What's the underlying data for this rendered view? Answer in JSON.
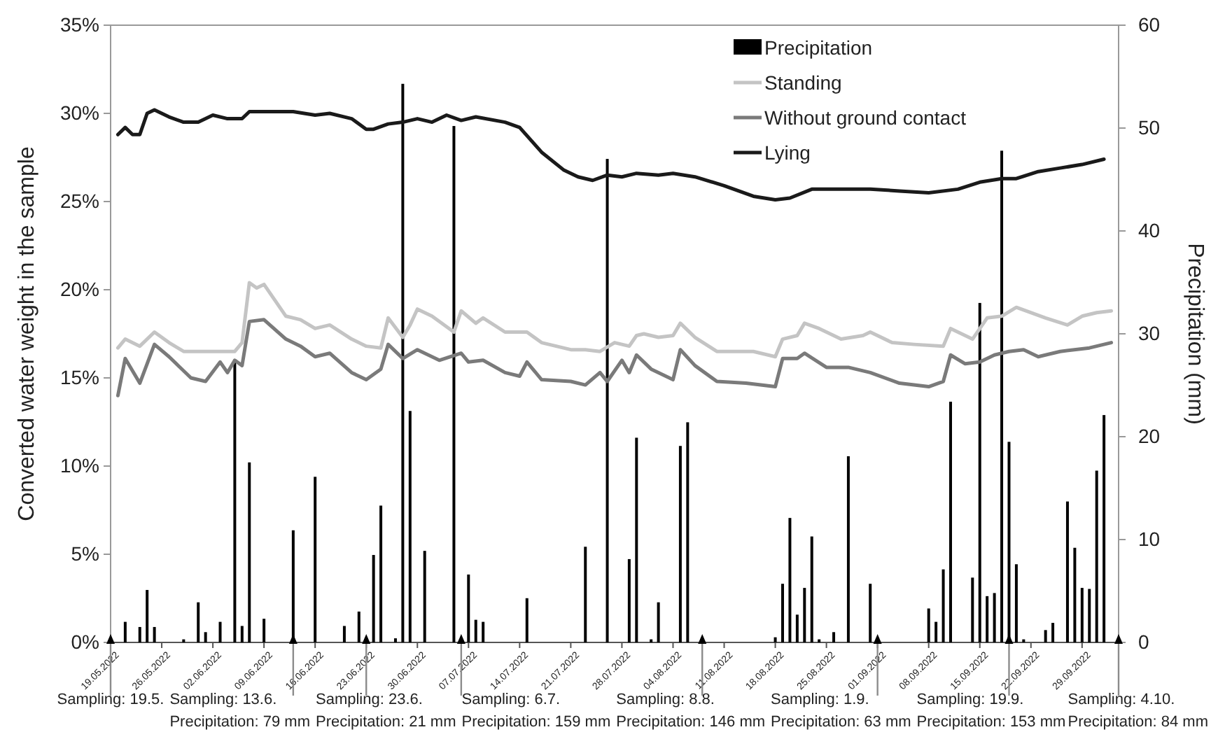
{
  "chart_data": {
    "type": "line",
    "xlabel": null,
    "ylabel": "Converted water weight in the sample",
    "y2label": "Precipitation (mm)",
    "xlim": [
      "2022-05-19",
      "2022-10-04"
    ],
    "xticks": [
      {
        "value": "2022-05-19",
        "label": "19.05.2022"
      },
      {
        "value": "2022-05-26",
        "label": "26.05.2022"
      },
      {
        "value": "2022-06-02",
        "label": "02.06.2022"
      },
      {
        "value": "2022-06-09",
        "label": "09.06.2022"
      },
      {
        "value": "2022-06-16",
        "label": "16.06.2022"
      },
      {
        "value": "2022-06-23",
        "label": "23.06.2022"
      },
      {
        "value": "2022-06-30",
        "label": "30.06.2022"
      },
      {
        "value": "2022-07-07",
        "label": "07.07.2022"
      },
      {
        "value": "2022-07-14",
        "label": "14.07.2022"
      },
      {
        "value": "2022-07-21",
        "label": "21.07.2022"
      },
      {
        "value": "2022-07-28",
        "label": "28.07.2022"
      },
      {
        "value": "2022-08-04",
        "label": "04.08.2022"
      },
      {
        "value": "2022-08-11",
        "label": "11.08.2022"
      },
      {
        "value": "2022-08-18",
        "label": "18.08.2022"
      },
      {
        "value": "2022-08-25",
        "label": "25.08.2022"
      },
      {
        "value": "2022-09-01",
        "label": "01.09.2022"
      },
      {
        "value": "2022-09-08",
        "label": "08.09.2022"
      },
      {
        "value": "2022-09-15",
        "label": "15.09.2022"
      },
      {
        "value": "2022-09-22",
        "label": "22.09.2022"
      },
      {
        "value": "2022-09-29",
        "label": "29.09.2022"
      }
    ],
    "ylim": [
      0,
      35
    ],
    "yticks": [
      {
        "value": 0,
        "label": "0%"
      },
      {
        "value": 5,
        "label": "5%"
      },
      {
        "value": 10,
        "label": "10%"
      },
      {
        "value": 15,
        "label": "15%"
      },
      {
        "value": 20,
        "label": "20%"
      },
      {
        "value": 25,
        "label": "25%"
      },
      {
        "value": 30,
        "label": "30%"
      },
      {
        "value": 35,
        "label": "35%"
      }
    ],
    "y2lim": [
      0,
      60
    ],
    "y2ticks": [
      0,
      10,
      20,
      30,
      40,
      50,
      60
    ],
    "legend": "top right",
    "marker": "none",
    "line_style": "solid",
    "grid": false,
    "series": [
      {
        "name": "Precipitation",
        "type": "bar",
        "axis": "y2",
        "color": "#000000",
        "x": [
          "2022-05-21",
          "2022-05-23",
          "2022-05-24",
          "2022-05-25",
          "2022-05-29",
          "2022-05-31",
          "2022-06-01",
          "2022-06-03",
          "2022-06-05",
          "2022-06-06",
          "2022-06-07",
          "2022-06-09",
          "2022-06-13",
          "2022-06-16",
          "2022-06-20",
          "2022-06-22",
          "2022-06-24",
          "2022-06-25",
          "2022-06-27",
          "2022-06-28",
          "2022-06-29",
          "2022-07-01",
          "2022-07-05",
          "2022-07-07",
          "2022-07-08",
          "2022-07-09",
          "2022-07-15",
          "2022-07-23",
          "2022-07-26",
          "2022-07-29",
          "2022-07-30",
          "2022-08-01",
          "2022-08-02",
          "2022-08-05",
          "2022-08-06",
          "2022-08-18",
          "2022-08-19",
          "2022-08-20",
          "2022-08-21",
          "2022-08-22",
          "2022-08-23",
          "2022-08-24",
          "2022-08-26",
          "2022-08-28",
          "2022-08-31",
          "2022-09-08",
          "2022-09-09",
          "2022-09-10",
          "2022-09-11",
          "2022-09-14",
          "2022-09-15",
          "2022-09-16",
          "2022-09-17",
          "2022-09-18",
          "2022-09-19",
          "2022-09-20",
          "2022-09-21",
          "2022-09-24",
          "2022-09-25",
          "2022-09-27",
          "2022-09-28",
          "2022-09-29",
          "2022-09-30",
          "2022-10-01",
          "2022-10-02"
        ],
        "values": [
          2.0,
          1.5,
          5.1,
          1.5,
          0.3,
          3.9,
          1.0,
          2.0,
          27.5,
          1.6,
          17.5,
          2.3,
          10.9,
          16.1,
          1.6,
          3.0,
          8.5,
          13.3,
          0.4,
          54.3,
          22.5,
          8.9,
          50.2,
          6.6,
          2.2,
          2.0,
          4.3,
          9.3,
          47.0,
          8.1,
          19.9,
          0.3,
          3.9,
          19.1,
          21.4,
          0.5,
          5.7,
          12.1,
          2.7,
          5.3,
          10.3,
          0.3,
          1.0,
          18.1,
          5.7,
          3.3,
          2.0,
          7.1,
          23.4,
          6.3,
          33.0,
          4.5,
          4.8,
          47.8,
          19.5,
          7.6,
          0.3,
          1.2,
          1.9,
          13.7,
          9.2,
          5.3,
          5.2,
          16.7,
          22.1
        ]
      },
      {
        "name": "Standing",
        "color": "#c4c4c4",
        "x": [
          "2022-05-20",
          "2022-05-21",
          "2022-05-23",
          "2022-05-25",
          "2022-05-27",
          "2022-05-29",
          "2022-06-02",
          "2022-06-05",
          "2022-06-06",
          "2022-06-07",
          "2022-06-08",
          "2022-06-09",
          "2022-06-12",
          "2022-06-14",
          "2022-06-16",
          "2022-06-18",
          "2022-06-21",
          "2022-06-23",
          "2022-06-25",
          "2022-06-26",
          "2022-06-28",
          "2022-06-29",
          "2022-06-30",
          "2022-07-02",
          "2022-07-05",
          "2022-07-06",
          "2022-07-08",
          "2022-07-09",
          "2022-07-12",
          "2022-07-15",
          "2022-07-17",
          "2022-07-21",
          "2022-07-23",
          "2022-07-25",
          "2022-07-27",
          "2022-07-29",
          "2022-07-30",
          "2022-07-31",
          "2022-08-02",
          "2022-08-04",
          "2022-08-05",
          "2022-08-07",
          "2022-08-10",
          "2022-08-15",
          "2022-08-18",
          "2022-08-19",
          "2022-08-21",
          "2022-08-22",
          "2022-08-24",
          "2022-08-27",
          "2022-08-30",
          "2022-08-31",
          "2022-09-03",
          "2022-09-06",
          "2022-09-10",
          "2022-09-11",
          "2022-09-14",
          "2022-09-16",
          "2022-09-18",
          "2022-09-20",
          "2022-09-24",
          "2022-09-27",
          "2022-09-29",
          "2022-10-01",
          "2022-10-03"
        ],
        "values": [
          16.7,
          17.2,
          16.8,
          17.6,
          17.0,
          16.5,
          16.5,
          16.5,
          17.0,
          20.4,
          20.1,
          20.3,
          18.5,
          18.3,
          17.8,
          18.0,
          17.2,
          16.8,
          16.7,
          18.4,
          17.3,
          18.0,
          18.9,
          18.5,
          17.6,
          18.8,
          18.1,
          18.4,
          17.6,
          17.6,
          17.0,
          16.6,
          16.6,
          16.5,
          17.0,
          16.8,
          17.4,
          17.5,
          17.3,
          17.4,
          18.1,
          17.3,
          16.5,
          16.5,
          16.2,
          17.2,
          17.4,
          18.1,
          17.8,
          17.2,
          17.4,
          17.6,
          17.0,
          16.9,
          16.8,
          17.8,
          17.2,
          18.4,
          18.5,
          19.0,
          18.4,
          18.0,
          18.5,
          18.7,
          18.8
        ]
      },
      {
        "name": "Without ground contact",
        "color": "#7a7a7a",
        "x": [
          "2022-05-20",
          "2022-05-21",
          "2022-05-23",
          "2022-05-25",
          "2022-05-27",
          "2022-05-30",
          "2022-06-01",
          "2022-06-03",
          "2022-06-04",
          "2022-06-05",
          "2022-06-06",
          "2022-06-07",
          "2022-06-09",
          "2022-06-12",
          "2022-06-14",
          "2022-06-16",
          "2022-06-18",
          "2022-06-21",
          "2022-06-23",
          "2022-06-25",
          "2022-06-26",
          "2022-06-28",
          "2022-06-30",
          "2022-07-03",
          "2022-07-06",
          "2022-07-07",
          "2022-07-09",
          "2022-07-12",
          "2022-07-14",
          "2022-07-15",
          "2022-07-17",
          "2022-07-21",
          "2022-07-23",
          "2022-07-25",
          "2022-07-26",
          "2022-07-28",
          "2022-07-29",
          "2022-07-30",
          "2022-08-01",
          "2022-08-04",
          "2022-08-05",
          "2022-08-07",
          "2022-08-10",
          "2022-08-14",
          "2022-08-18",
          "2022-08-19",
          "2022-08-21",
          "2022-08-22",
          "2022-08-25",
          "2022-08-28",
          "2022-08-31",
          "2022-09-04",
          "2022-09-08",
          "2022-09-10",
          "2022-09-11",
          "2022-09-13",
          "2022-09-15",
          "2022-09-17",
          "2022-09-19",
          "2022-09-21",
          "2022-09-23",
          "2022-09-26",
          "2022-09-30",
          "2022-10-03"
        ],
        "values": [
          14.0,
          16.1,
          14.7,
          16.9,
          16.2,
          15.0,
          14.8,
          15.9,
          15.3,
          16.0,
          15.7,
          18.2,
          18.3,
          17.2,
          16.8,
          16.2,
          16.4,
          15.3,
          14.9,
          15.5,
          16.9,
          16.1,
          16.6,
          16.0,
          16.4,
          15.9,
          16.0,
          15.3,
          15.1,
          15.9,
          14.9,
          14.8,
          14.6,
          15.3,
          14.8,
          16.0,
          15.3,
          16.3,
          15.5,
          14.9,
          16.6,
          15.7,
          14.8,
          14.7,
          14.5,
          16.1,
          16.1,
          16.4,
          15.6,
          15.6,
          15.3,
          14.7,
          14.5,
          14.8,
          16.3,
          15.8,
          15.9,
          16.3,
          16.5,
          16.6,
          16.2,
          16.5,
          16.7,
          17.0
        ]
      },
      {
        "name": "Lying",
        "color": "#1a1a1a",
        "x": [
          "2022-05-20",
          "2022-05-21",
          "2022-05-22",
          "2022-05-23",
          "2022-05-24",
          "2022-05-25",
          "2022-05-27",
          "2022-05-29",
          "2022-05-31",
          "2022-06-02",
          "2022-06-04",
          "2022-06-06",
          "2022-06-07",
          "2022-06-10",
          "2022-06-13",
          "2022-06-16",
          "2022-06-18",
          "2022-06-21",
          "2022-06-23",
          "2022-06-24",
          "2022-06-26",
          "2022-06-28",
          "2022-06-30",
          "2022-07-02",
          "2022-07-04",
          "2022-07-06",
          "2022-07-08",
          "2022-07-12",
          "2022-07-14",
          "2022-07-17",
          "2022-07-20",
          "2022-07-22",
          "2022-07-24",
          "2022-07-26",
          "2022-07-28",
          "2022-07-30",
          "2022-08-02",
          "2022-08-04",
          "2022-08-07",
          "2022-08-11",
          "2022-08-15",
          "2022-08-18",
          "2022-08-20",
          "2022-08-23",
          "2022-08-27",
          "2022-08-31",
          "2022-09-04",
          "2022-09-08",
          "2022-09-12",
          "2022-09-15",
          "2022-09-18",
          "2022-09-20",
          "2022-09-23",
          "2022-09-26",
          "2022-09-29",
          "2022-10-02"
        ],
        "values": [
          28.8,
          29.2,
          28.8,
          28.8,
          30.0,
          30.2,
          29.8,
          29.5,
          29.5,
          29.9,
          29.7,
          29.7,
          30.1,
          30.1,
          30.1,
          29.9,
          30.0,
          29.7,
          29.1,
          29.1,
          29.4,
          29.5,
          29.7,
          29.5,
          29.9,
          29.6,
          29.8,
          29.5,
          29.2,
          27.8,
          26.8,
          26.4,
          26.2,
          26.5,
          26.4,
          26.6,
          26.5,
          26.6,
          26.4,
          25.9,
          25.3,
          25.1,
          25.2,
          25.7,
          25.7,
          25.7,
          25.6,
          25.5,
          25.7,
          26.1,
          26.3,
          26.3,
          26.7,
          26.9,
          27.1,
          27.4
        ]
      }
    ],
    "ref_lines": [
      {
        "axis": "x",
        "value": "2022-05-19",
        "label": "Sampling: 19.5.",
        "color": "#8c8c8c"
      },
      {
        "axis": "x",
        "value": "2022-06-13",
        "label": "Sampling: 13.6.\nPrecipitation: 79 mm",
        "color": "#8c8c8c"
      },
      {
        "axis": "x",
        "value": "2022-06-23",
        "label": "Sampling: 23.6.\nPrecipitation: 21 mm",
        "color": "#8c8c8c"
      },
      {
        "axis": "x",
        "value": "2022-07-06",
        "label": "Sampling: 6.7.\nPrecipitation: 159 mm",
        "color": "#8c8c8c"
      },
      {
        "axis": "x",
        "value": "2022-08-08",
        "label": "Sampling: 8.8.\nPrecipitation: 146 mm",
        "color": "#8c8c8c"
      },
      {
        "axis": "x",
        "value": "2022-09-01",
        "label": "Sampling: 1.9.\nPrecipitation: 63 mm",
        "color": "#8c8c8c"
      },
      {
        "axis": "x",
        "value": "2022-09-19",
        "label": "Sampling: 19.9.\nPrecipitation: 153 mm",
        "color": "#8c8c8c"
      },
      {
        "axis": "x",
        "value": "2022-10-04",
        "label": "Sampling: 4.10.\nPrecipitation: 84 mm",
        "color": "#8c8c8c"
      }
    ]
  }
}
